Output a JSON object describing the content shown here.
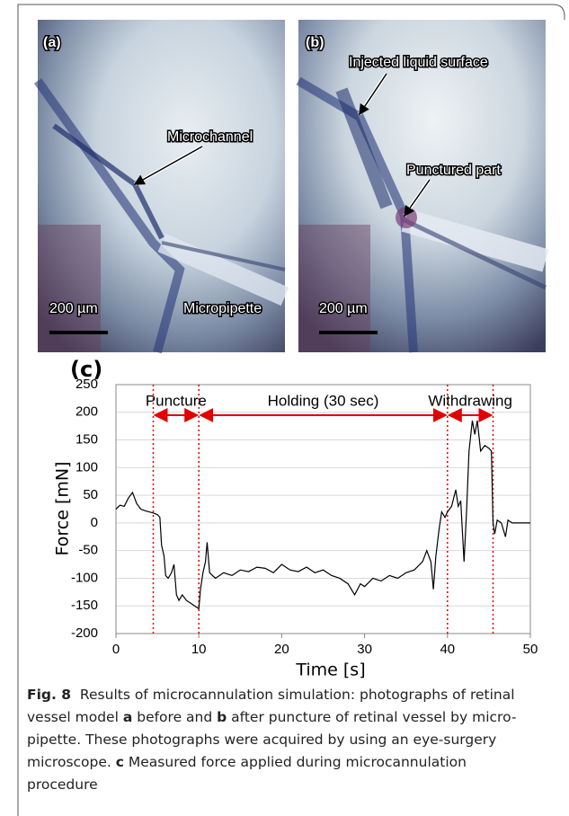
{
  "panels": [
    {
      "label": "(a)",
      "annotations": [
        "Microchannel",
        "Micropipette"
      ],
      "scale": "200 µm"
    },
    {
      "label": "(b)",
      "annotations": [
        "Injected liquid surface",
        "Punctured part"
      ],
      "scale": "200 µm"
    }
  ],
  "chart_data": {
    "type": "line",
    "panel_label": "(c)",
    "x_label": "Time [s]",
    "y_label": "Force [mN]",
    "xlim": [
      0,
      50
    ],
    "xticks": [
      0,
      10,
      20,
      30,
      40,
      50
    ],
    "ylim": [
      -200,
      250
    ],
    "yticks": [
      -200,
      -150,
      -100,
      -50,
      0,
      50,
      100,
      150,
      200,
      250
    ],
    "grid": true,
    "color": "#000000",
    "x": [
      0,
      0.5,
      1,
      1.5,
      2,
      2.5,
      3,
      3.5,
      4,
      4.5,
      5,
      5.3,
      5.5,
      5.8,
      6,
      6.3,
      6.7,
      7,
      7.3,
      7.6,
      8,
      8.5,
      9,
      9.5,
      10,
      10.2,
      10.5,
      10.8,
      11,
      11.3,
      12,
      13,
      14,
      15,
      16,
      17,
      18,
      19,
      20,
      21,
      22,
      23,
      24,
      25,
      26,
      27,
      28,
      28.8,
      29.5,
      30,
      31,
      32,
      33,
      34,
      35,
      36,
      37,
      37.5,
      38,
      38.3,
      38.6,
      39,
      39.3,
      39.7,
      40,
      40.5,
      41,
      41.3,
      41.6,
      42,
      42.3,
      42.6,
      43,
      43.3,
      43.6,
      44,
      44.5,
      45,
      45.3,
      45.5,
      45.7,
      46,
      46.5,
      47,
      47.3,
      47.8,
      50
    ],
    "values": [
      25,
      32,
      30,
      45,
      55,
      35,
      25,
      22,
      20,
      18,
      15,
      10,
      -40,
      -60,
      -95,
      -100,
      -90,
      -75,
      -130,
      -140,
      -130,
      -140,
      -145,
      -150,
      -155,
      -120,
      -90,
      -70,
      -35,
      -90,
      -100,
      -90,
      -95,
      -85,
      -88,
      -80,
      -82,
      -90,
      -75,
      -85,
      -88,
      -80,
      -90,
      -85,
      -95,
      -100,
      -110,
      -130,
      -110,
      -115,
      -100,
      -105,
      -95,
      -100,
      -90,
      -85,
      -70,
      -50,
      -70,
      -120,
      -60,
      -10,
      20,
      10,
      20,
      30,
      60,
      30,
      40,
      -70,
      20,
      130,
      185,
      160,
      185,
      130,
      140,
      135,
      130,
      0,
      -20,
      5,
      0,
      -25,
      5,
      0,
      0
    ],
    "vlines": [
      4.5,
      10,
      40,
      45.5
    ],
    "vline_color": "#e00000",
    "spans": [
      {
        "label": "Puncture",
        "x": [
          4.5,
          10
        ]
      },
      {
        "label": "Holding (30 sec)",
        "x": [
          10,
          40
        ]
      },
      {
        "label": "Withdrawing",
        "x": [
          40,
          45.5
        ]
      }
    ]
  },
  "caption": [
    [
      {
        "text": "Fig. 8",
        "bold": true
      },
      {
        "text": "  Results of microcannulation simulation: photographs of retinal",
        "bold": false
      }
    ],
    [
      {
        "text": "vessel model ",
        "bold": false
      },
      {
        "text": "a",
        "bold": true
      },
      {
        "text": " before and ",
        "bold": false
      },
      {
        "text": "b",
        "bold": true
      },
      {
        "text": " after puncture of retinal vessel by micro-",
        "bold": false
      }
    ],
    [
      {
        "text": "pipette. These photographs were acquired by using an eye-surgery",
        "bold": false
      }
    ],
    [
      {
        "text": "microscope. ",
        "bold": false
      },
      {
        "text": "c",
        "bold": true
      },
      {
        "text": " Measured force applied during microcannulation",
        "bold": false
      }
    ],
    [
      {
        "text": "procedure",
        "bold": false
      }
    ]
  ]
}
